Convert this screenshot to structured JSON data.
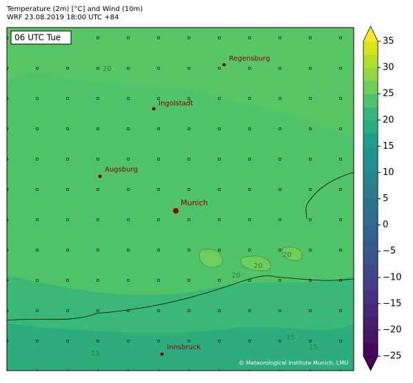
{
  "header": {
    "title_line1": "Temperature (2m) [°C] and Wind (10m)",
    "title_line2": "WRF 23.08.2019 18:00 UTC +84"
  },
  "map": {
    "time_label": "06 UTC Tue",
    "cities": [
      "Regensburg",
      "Ingolstadt",
      "Augsburg",
      "Munich",
      "Innsbruck"
    ],
    "contour_labels": [
      "20",
      "20",
      "20",
      "20",
      "15",
      "15",
      "15"
    ],
    "copyright": "© Meteorological Institute Munich, LMU"
  },
  "colorbar": {
    "lim": [
      -25,
      35
    ],
    "ticks": [
      {
        "value": -25,
        "label": "−25"
      },
      {
        "value": -20,
        "label": "−20"
      },
      {
        "value": -15,
        "label": "−15"
      },
      {
        "value": -10,
        "label": "−10"
      },
      {
        "value": -5,
        "label": "−5"
      },
      0,
      5,
      10,
      15,
      20,
      25,
      30,
      35
    ],
    "colors": [
      "#46085c",
      "#471365",
      "#481d6f",
      "#472878",
      "#46327e",
      "#433e85",
      "#3f4889",
      "#3b528b",
      "#375b8d",
      "#33638d",
      "#2f6c8e",
      "#2c748e",
      "#297c8e",
      "#26848e",
      "#228d8d",
      "#1f958b",
      "#1f9e89",
      "#25ac82",
      "#35b779",
      "#4ec36b",
      "#6ccd5a",
      "#90d743",
      "#b5de2b",
      "#dae319"
    ],
    "under_color": "#440154",
    "over_color": "#fde725"
  }
}
